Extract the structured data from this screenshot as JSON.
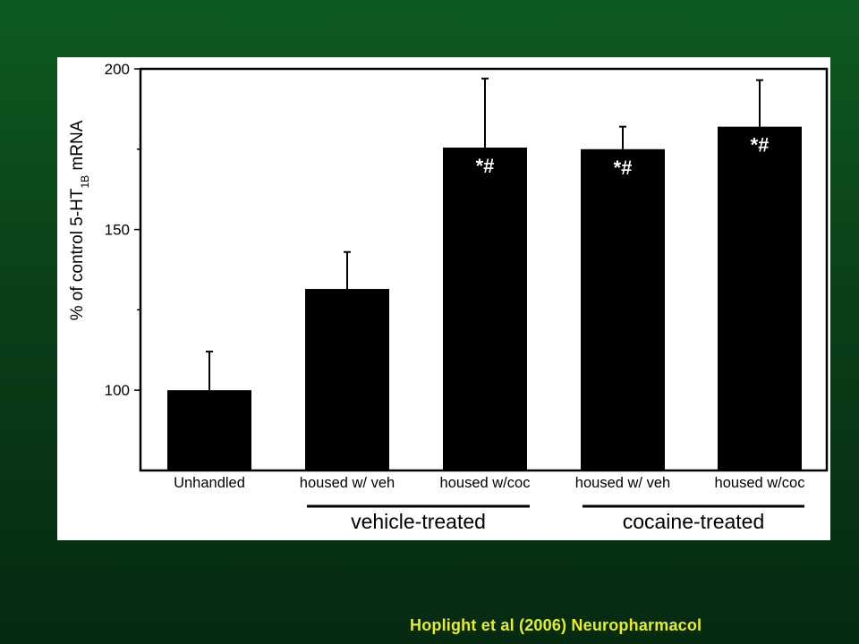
{
  "chart_data": {
    "type": "bar",
    "categories": [
      "Unhandled",
      "housed w/ veh",
      "housed w/coc",
      "housed w/ veh",
      "housed w/coc"
    ],
    "values": [
      100,
      131.5,
      175.5,
      175,
      182
    ],
    "error_upper": [
      112,
      143,
      197,
      182,
      196.5
    ],
    "annotations": [
      "",
      "",
      "*#",
      "*#",
      "*#"
    ],
    "ylabel": {
      "prefix": "% of control 5-HT",
      "subscript": "1B",
      "suffix": " mRNA"
    },
    "ylim": [
      75,
      200
    ],
    "yticks": [
      100,
      150,
      200
    ],
    "yminor": [
      125,
      175
    ],
    "groups": [
      {
        "label": "vehicle-treated",
        "start": 1,
        "end": 2
      },
      {
        "label": "cocaine-treated",
        "start": 3,
        "end": 4
      }
    ],
    "bar_color": "#000000",
    "grid": false
  },
  "citation": "Hoplight et al (2006) Neuropharmacol",
  "colors": {
    "citation": "#e8ee1f",
    "panel": "#ffffff"
  }
}
